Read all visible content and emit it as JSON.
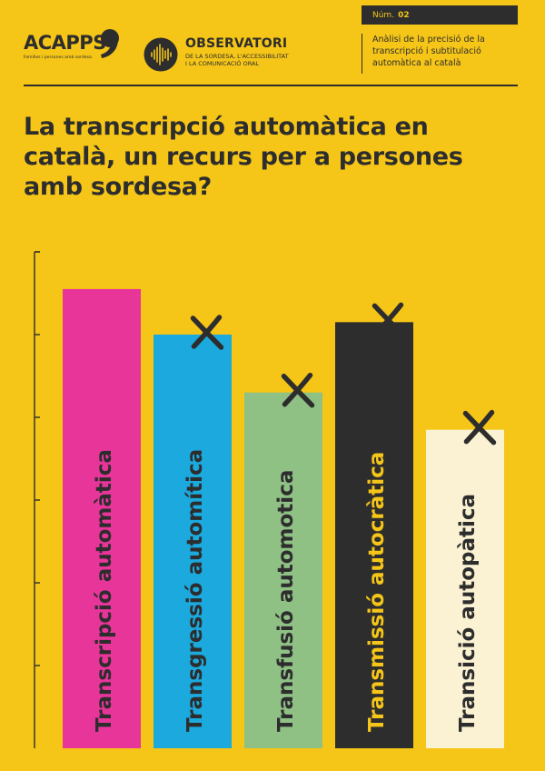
{
  "header": {
    "issue_label": "Núm.",
    "issue_number": "02",
    "acapps": {
      "name": "ACAPPS",
      "subtitle": "Famílies i persones amb sordesa"
    },
    "observatori": {
      "name": "OBSERVATORI",
      "lines": [
        "DE LA SORDESA, L'ACCESSIBILITAT",
        "I LA COMUNICACIÓ ORAL"
      ]
    },
    "description": "Anàlisi de la precisió de la transcripció i subtitulació automàtica al català"
  },
  "title": "La transcripció automàtica en català, un recurs per a persones amb sordesa?",
  "colors": {
    "background": "#F5C518",
    "ink": "#2d2d2d"
  },
  "chart_data": {
    "type": "bar",
    "categories": [
      "Transcripció automàtica",
      "Transgressió automítica",
      "Transfusió automotica",
      "Transmissió autocràtica",
      "Transició autopàtica"
    ],
    "values": [
      5.55,
      5.0,
      4.3,
      5.15,
      3.85
    ],
    "bar_colors": [
      "#E8359A",
      "#1BA9DE",
      "#8FC185",
      "#2D2D2D",
      "#FAF2D2"
    ],
    "label_colors": [
      "#2d2d2d",
      "#2d2d2d",
      "#2d2d2d",
      "#F5C518",
      "#2d2d2d"
    ],
    "crossed_out": [
      false,
      true,
      true,
      true,
      true
    ],
    "ylim": [
      0,
      6
    ],
    "y_ticks": [
      1,
      2,
      3,
      4,
      5,
      6
    ],
    "xlabel": "",
    "ylabel": "",
    "grid": false
  }
}
